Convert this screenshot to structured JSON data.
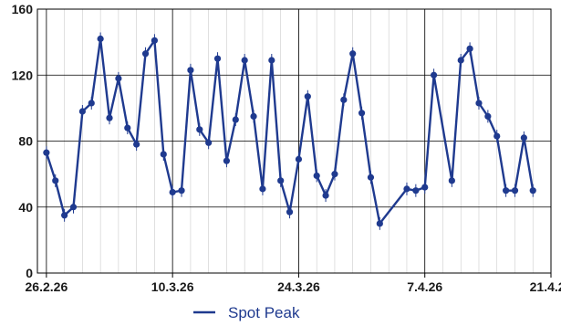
{
  "chart_data": {
    "type": "line",
    "ylim": [
      0,
      160
    ],
    "y_ticks": [
      "0",
      "40",
      "80",
      "120",
      "160"
    ],
    "x_tick_labels": [
      "26.2.26",
      "10.3.26",
      "24.3.26",
      "7.4.26",
      "21.4.26"
    ],
    "grid": true,
    "legend_position": "bottom-center",
    "colors": {
      "series": "#1f3a8f",
      "grid": "#000000",
      "minor_grid": "#cccccc"
    },
    "series": [
      {
        "name": "Spot Peak",
        "points": [
          [
            "2026-02-26",
            73
          ],
          [
            "2026-02-27",
            56
          ],
          [
            "2026-02-28",
            35
          ],
          [
            "2026-03-01",
            40
          ],
          [
            "2026-03-02",
            98
          ],
          [
            "2026-03-03",
            103
          ],
          [
            "2026-03-04",
            142
          ],
          [
            "2026-03-05",
            94
          ],
          [
            "2026-03-06",
            118
          ],
          [
            "2026-03-07",
            88
          ],
          [
            "2026-03-08",
            78
          ],
          [
            "2026-03-09",
            133
          ],
          [
            "2026-03-10",
            141
          ],
          [
            "2026-03-11",
            72
          ],
          [
            "2026-03-12",
            49
          ],
          [
            "2026-03-13",
            50
          ],
          [
            "2026-03-14",
            123
          ],
          [
            "2026-03-15",
            87
          ],
          [
            "2026-03-16",
            79
          ],
          [
            "2026-03-17",
            130
          ],
          [
            "2026-03-18",
            68
          ],
          [
            "2026-03-19",
            93
          ],
          [
            "2026-03-20",
            129
          ],
          [
            "2026-03-21",
            95
          ],
          [
            "2026-03-22",
            51
          ],
          [
            "2026-03-23",
            129
          ],
          [
            "2026-03-24",
            56
          ],
          [
            "2026-03-25",
            37
          ],
          [
            "2026-03-26",
            69
          ],
          [
            "2026-03-27",
            107
          ],
          [
            "2026-03-28",
            59
          ],
          [
            "2026-03-29",
            47
          ],
          [
            "2026-03-30",
            60
          ],
          [
            "2026-03-31",
            105
          ],
          [
            "2026-04-01",
            133
          ],
          [
            "2026-04-02",
            97
          ],
          [
            "2026-04-03",
            58
          ],
          [
            "2026-04-04",
            30
          ],
          [
            "2026-04-07",
            51
          ],
          [
            "2026-04-08",
            50
          ],
          [
            "2026-04-09",
            52
          ],
          [
            "2026-04-10",
            120
          ],
          [
            "2026-04-12",
            56
          ],
          [
            "2026-04-13",
            129
          ],
          [
            "2026-04-14",
            136
          ],
          [
            "2026-04-15",
            103
          ],
          [
            "2026-04-16",
            95
          ],
          [
            "2026-04-17",
            83
          ],
          [
            "2026-04-18",
            50
          ],
          [
            "2026-04-19",
            50
          ],
          [
            "2026-04-20",
            82
          ],
          [
            "2026-04-21",
            50
          ]
        ]
      }
    ]
  }
}
